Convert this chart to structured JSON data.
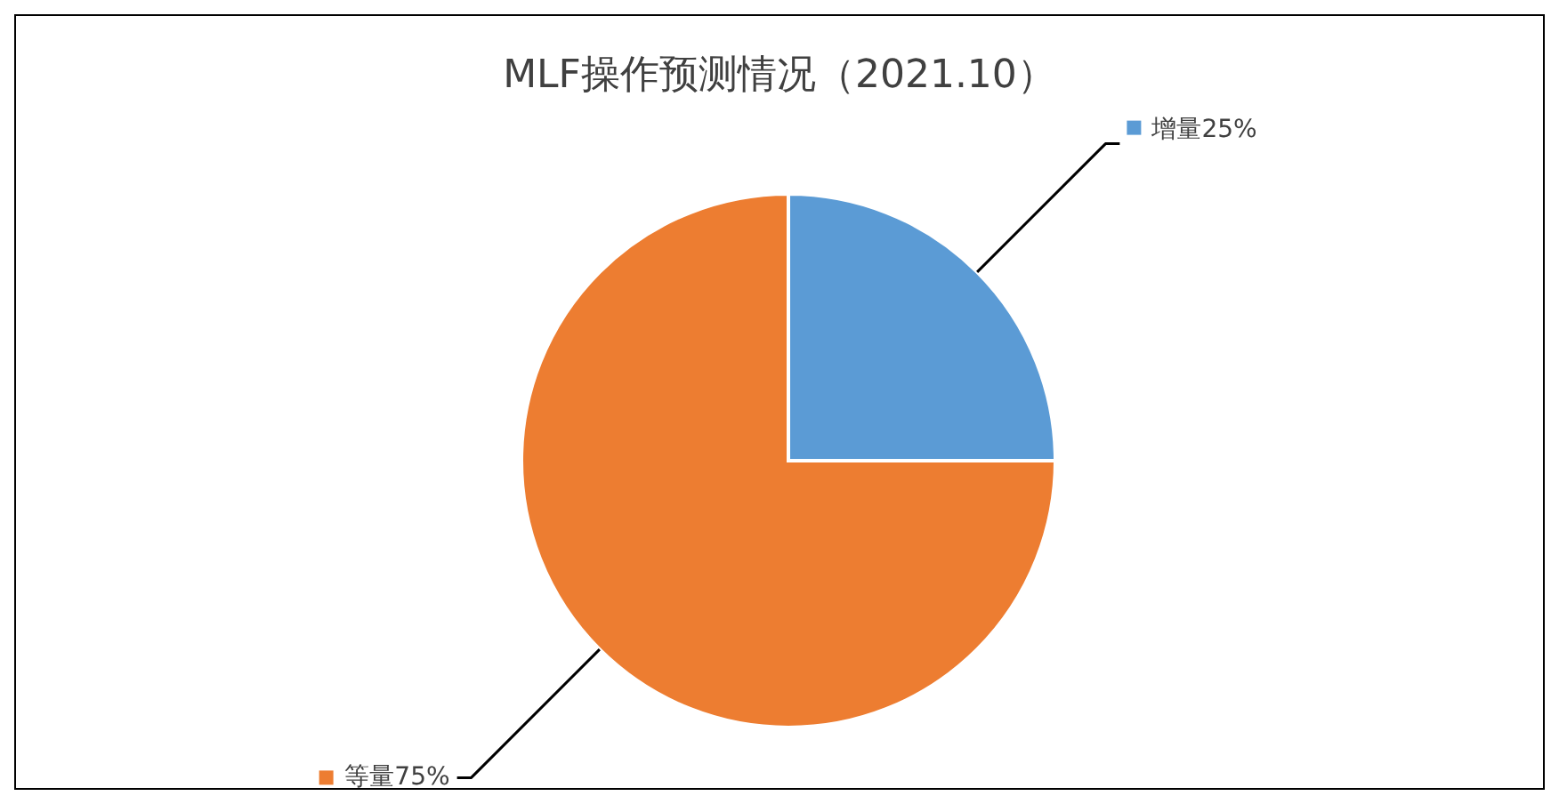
{
  "chart_data": {
    "type": "pie",
    "title": "MLF操作预测情况（2021.10）",
    "categories": [
      "增量",
      "等量"
    ],
    "values": [
      25,
      75
    ],
    "value_labels": [
      "25%",
      "75%"
    ],
    "colors": [
      "#5b9bd5",
      "#ed7d31"
    ],
    "legend": "right"
  }
}
